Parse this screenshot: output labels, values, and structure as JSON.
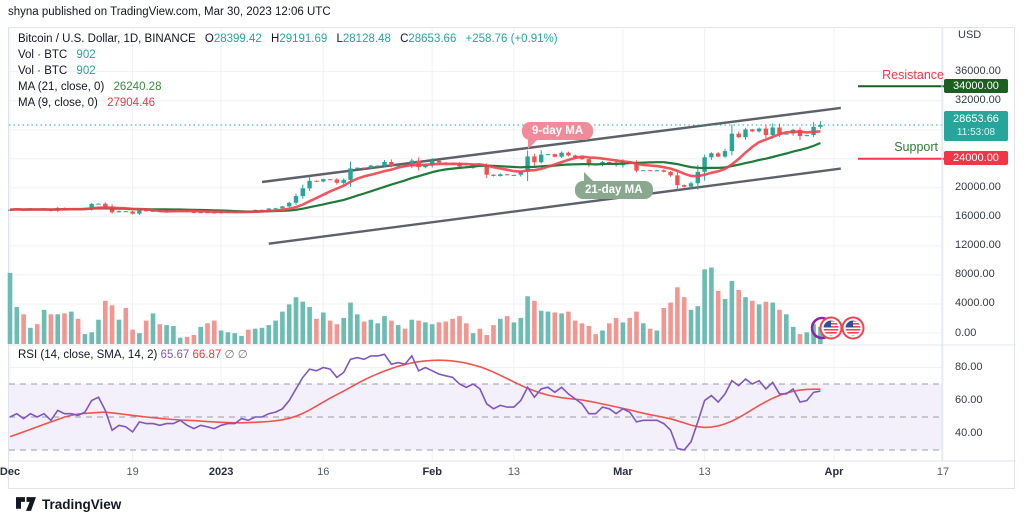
{
  "pub_header": {
    "text": "shyna published on TradingView.com, Mar 30, 2023 12:06 UTC"
  },
  "legend": {
    "symbol": "Bitcoin / U.S. Dollar, 1D, BINANCE",
    "o_label": "O",
    "o": "28399.42",
    "h_label": "H",
    "h": "29191.69",
    "l_label": "L",
    "l": "28128.48",
    "c_label": "C",
    "c": "28653.66",
    "change": "+258.76 (+0.91%)",
    "vol1_label": "Vol · BTC",
    "vol1_value": "902",
    "vol2_label": "Vol · BTC",
    "vol2_value": "902",
    "ma21_label": "MA (21, close, 0)",
    "ma21_value": "26240.28",
    "ma9_label": "MA (9, close, 0)",
    "ma9_value": "27904.46"
  },
  "rsi_legend": {
    "label": "RSI (14, close, SMA, 14, 2)",
    "value1": "65.67",
    "value2": "66.87",
    "suffix": "∅ ∅"
  },
  "price_axis": {
    "title": "USD",
    "labels": [
      {
        "text": "36000.00",
        "price": 36000
      },
      {
        "text": "32000.00",
        "price": 32000
      },
      {
        "text": "20000.00",
        "price": 20000
      },
      {
        "text": "16000.00",
        "price": 16000
      },
      {
        "text": "12000.00",
        "price": 12000
      },
      {
        "text": "8000.00",
        "price": 8000
      },
      {
        "text": "4000.00",
        "price": 4000
      },
      {
        "text": "0.00",
        "price": 0
      }
    ]
  },
  "rsi_axis": {
    "labels": [
      {
        "text": "80.00",
        "value": 80
      },
      {
        "text": "60.00",
        "value": 60
      },
      {
        "text": "40.00",
        "value": 40
      }
    ]
  },
  "time_axis": {
    "labels": [
      {
        "text": "Dec",
        "day": 0,
        "major": true
      },
      {
        "text": "19",
        "day": 18,
        "major": false
      },
      {
        "text": "2023",
        "day": 31,
        "major": true
      },
      {
        "text": "16",
        "day": 46,
        "major": false
      },
      {
        "text": "Feb",
        "day": 62,
        "major": true
      },
      {
        "text": "13",
        "day": 74,
        "major": false
      },
      {
        "text": "Mar",
        "day": 90,
        "major": true
      },
      {
        "text": "13",
        "day": 102,
        "major": false
      },
      {
        "text": "Apr",
        "day": 121,
        "major": true
      },
      {
        "text": "17",
        "day": 137,
        "major": false
      }
    ]
  },
  "annotations": {
    "resistance_label": "Resistance",
    "resistance_value": "34000.00",
    "resistance_price": 34000,
    "support_label": "Support",
    "support_value": "24000.00",
    "support_price": 24000,
    "current_value": "28653.66",
    "countdown": "11:53:08",
    "current_price": 28653.66,
    "bubble1": "9-day MA",
    "bubble2": "21-day MA"
  },
  "footer": {
    "brand": "TradingView"
  },
  "colors": {
    "up": "#26a69a",
    "down": "#ef5350",
    "vol_up": "#63b8ae",
    "vol_down": "#f1908b",
    "ma9": "#f0434e",
    "ma21": "#1e7b39",
    "channel": "#42464f",
    "rsi": "#7e57c2",
    "rsi_sma": "#f0544f",
    "rsi_band": "#f3effb",
    "dashed": "#9a9ea9",
    "grid": "#eef1f6",
    "accent_teal": "#26a69a",
    "accent_red": "#f23645",
    "accent_green": "#1b5e20"
  },
  "chart_data": {
    "type": "candlestick",
    "title": "Bitcoin / U.S. Dollar, 1D, BINANCE",
    "panes": [
      "price+volume",
      "rsi"
    ],
    "price_axis_visible_labels": [
      36000,
      32000,
      20000,
      16000,
      12000,
      8000,
      4000,
      0
    ],
    "ylim_price": [
      0,
      38000
    ],
    "ylim_rsi": [
      20,
      95
    ],
    "ma_periods": [
      9,
      21
    ],
    "last_candle": {
      "o": 28399.42,
      "h": 29191.69,
      "l": 28128.48,
      "c": 28653.66
    },
    "closes": [
      16980,
      17090,
      16910,
      17110,
      16970,
      17090,
      16840,
      17230,
      17130,
      17130,
      17090,
      17210,
      17780,
      17810,
      17360,
      16630,
      16780,
      16740,
      16440,
      16900,
      16820,
      16820,
      16780,
      16840,
      16840,
      16920,
      16700,
      16540,
      16640,
      16600,
      16540,
      16620,
      16670,
      16670,
      16860,
      16830,
      16950,
      16950,
      17130,
      17180,
      17440,
      17940,
      18850,
      19930,
      20960,
      20880,
      21190,
      21140,
      20680,
      21080,
      22670,
      22780,
      22710,
      23060,
      23060,
      23560,
      23010,
      23080,
      23030,
      23740,
      22840,
      23130,
      23720,
      23490,
      23430,
      23330,
      22940,
      22760,
      23250,
      22960,
      21800,
      21630,
      21860,
      21780,
      21780,
      22200,
      24320,
      23520,
      24570,
      24630,
      24280,
      24830,
      24450,
      24180,
      23940,
      23190,
      23160,
      23560,
      23490,
      23130,
      23640,
      23470,
      22360,
      22430,
      22410,
      22410,
      22200,
      21710,
      20370,
      20150,
      20620,
      22200,
      24200,
      24750,
      24300,
      25060,
      27450,
      26970,
      28040,
      27760,
      28150,
      27250,
      28300,
      27450,
      27470,
      27970,
      27120,
      27260,
      28399,
      28653.66
    ],
    "volumes": [
      7900,
      4100,
      3300,
      1800,
      2200,
      3800,
      3300,
      3300,
      3400,
      3600,
      2800,
      1100,
      1300,
      2700,
      4800,
      4300,
      2700,
      4000,
      1600,
      1200,
      2600,
      3400,
      2200,
      2100,
      2000,
      700,
      800,
      1000,
      1900,
      2300,
      2600,
      1500,
      1300,
      1200,
      900,
      1600,
      1700,
      1800,
      2100,
      2600,
      3600,
      4400,
      5200,
      4700,
      4100,
      2800,
      3500,
      2600,
      2200,
      2900,
      4600,
      3300,
      2500,
      2700,
      2300,
      3100,
      2600,
      2100,
      1700,
      2700,
      2600,
      2400,
      2200,
      2400,
      2500,
      2800,
      3100,
      2300,
      1200,
      1700,
      1000,
      2100,
      2800,
      3100,
      2400,
      2900,
      5300,
      4800,
      3700,
      3600,
      3500,
      3400,
      3600,
      2600,
      2300,
      2000,
      1100,
      1500,
      2300,
      2900,
      2400,
      2900,
      3600,
      2300,
      1700,
      1500,
      4000,
      4600,
      6300,
      5200,
      3800,
      4200,
      8300,
      8500,
      5900,
      5000,
      7000,
      6000,
      5200,
      4800,
      4400,
      4700,
      4600,
      3800,
      3300,
      1900,
      1100,
      1300,
      2200,
      1900
    ],
    "rsi": [
      50,
      52,
      49,
      52,
      50,
      52,
      48,
      54,
      52,
      52,
      51,
      53,
      60,
      62,
      54,
      42,
      45,
      44,
      41,
      47,
      46,
      46,
      45,
      46,
      46,
      48,
      45,
      43,
      45,
      44,
      43,
      45,
      46,
      46,
      49,
      48,
      50,
      50,
      52,
      53,
      55,
      60,
      67,
      74,
      79,
      78,
      80,
      79,
      74,
      77,
      85,
      86,
      85,
      87,
      87,
      88,
      82,
      83,
      82,
      87,
      78,
      80,
      78,
      76,
      75,
      74,
      70,
      68,
      70,
      67,
      58,
      55,
      57,
      56,
      56,
      60,
      68,
      62,
      67,
      68,
      65,
      68,
      64,
      61,
      58,
      52,
      52,
      56,
      55,
      52,
      55,
      53,
      47,
      48,
      48,
      48,
      46,
      42,
      31,
      30,
      35,
      47,
      60,
      63,
      59,
      64,
      72,
      69,
      73,
      70,
      72,
      67,
      71,
      64,
      64,
      67,
      59,
      60,
      65,
      65.67
    ],
    "rsi_sma": [
      38,
      39.5,
      41,
      42.5,
      44,
      45.5,
      47,
      48.5,
      50,
      51,
      51.8,
      52.2,
      52.5,
      52.8,
      52.9,
      52.5,
      52,
      51.5,
      51,
      50.5,
      50,
      49.6,
      49.2,
      48.8,
      48.5,
      48.2,
      48,
      47.8,
      47.5,
      47.2,
      47,
      46.8,
      46.6,
      46.5,
      46.5,
      46.6,
      46.8,
      47,
      47.3,
      47.7,
      48.3,
      49.2,
      50.5,
      52.2,
      54.3,
      56.6,
      59,
      61.4,
      63.6,
      65.7,
      68,
      70.3,
      72.4,
      74.4,
      76.2,
      77.9,
      79.4,
      80.7,
      81.8,
      82.8,
      83.5,
      84,
      84.3,
      84.4,
      84.3,
      84,
      83.4,
      82.6,
      81.6,
      80.4,
      78.9,
      77.2,
      75.3,
      73.3,
      71.2,
      69.2,
      67.4,
      65.8,
      64.4,
      63.3,
      62.4,
      61.7,
      61.2,
      60.8,
      60.3,
      59.6,
      58.8,
      57.9,
      57,
      56.1,
      55.2,
      54.3,
      53.3,
      52.3,
      51.4,
      50.6,
      49.8,
      48.9,
      47.7,
      46.4,
      45.1,
      44.1,
      43.7,
      43.9,
      44.6,
      45.8,
      47.5,
      49.6,
      52,
      54.5,
      57,
      59.3,
      61.4,
      63.1,
      64.5,
      65.6,
      66.3,
      66.7,
      66.85,
      66.87
    ],
    "channel": {
      "upper": {
        "d1": 37,
        "p1": 20800,
        "d2": 122,
        "p2": 31000
      },
      "lower": {
        "d1": 38,
        "p1": 12300,
        "d2": 122,
        "p2": 22650
      }
    },
    "rsi_dashed_levels": [
      70,
      50,
      30
    ],
    "rsi_band": [
      30,
      70
    ]
  }
}
